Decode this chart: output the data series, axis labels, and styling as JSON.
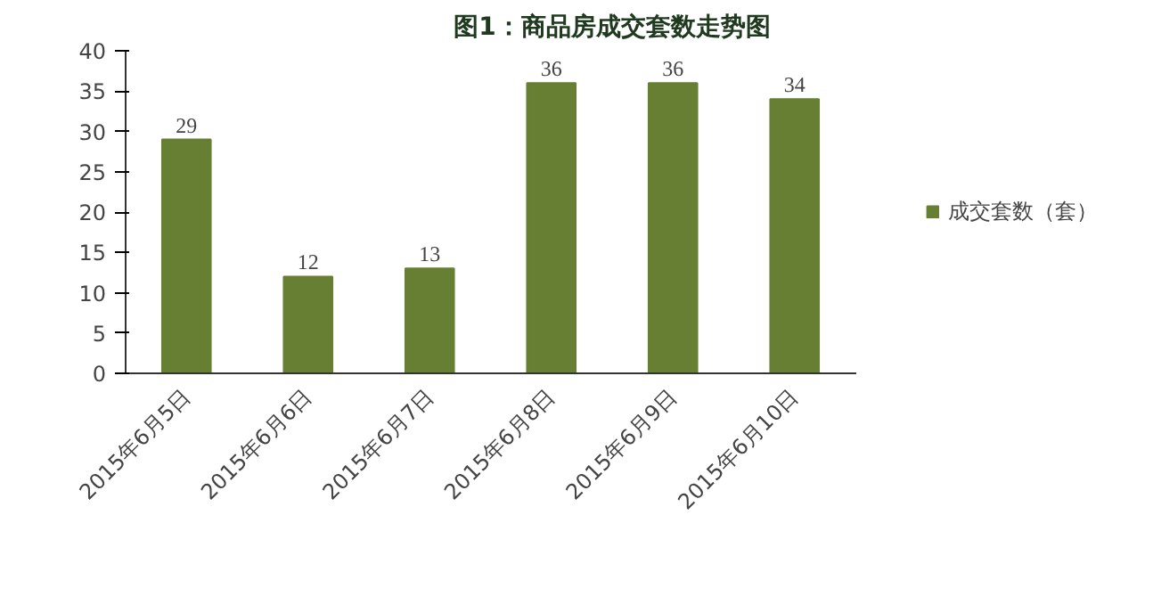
{
  "chart_data": {
    "type": "bar",
    "title": "图1：商品房成交套数走势图",
    "categories": [
      "2015年6月5日",
      "2015年6月6日",
      "2015年6月7日",
      "2015年6月8日",
      "2015年6月9日",
      "2015年6月10日"
    ],
    "series": [
      {
        "name": "成交套数（套）",
        "color": "#667f33",
        "values": [
          29,
          12,
          13,
          36,
          36,
          34
        ]
      }
    ],
    "ylim": [
      0,
      40
    ],
    "yticks": [
      0,
      5,
      10,
      15,
      20,
      25,
      30,
      35,
      40
    ],
    "data_labels": true,
    "legend": "right"
  }
}
